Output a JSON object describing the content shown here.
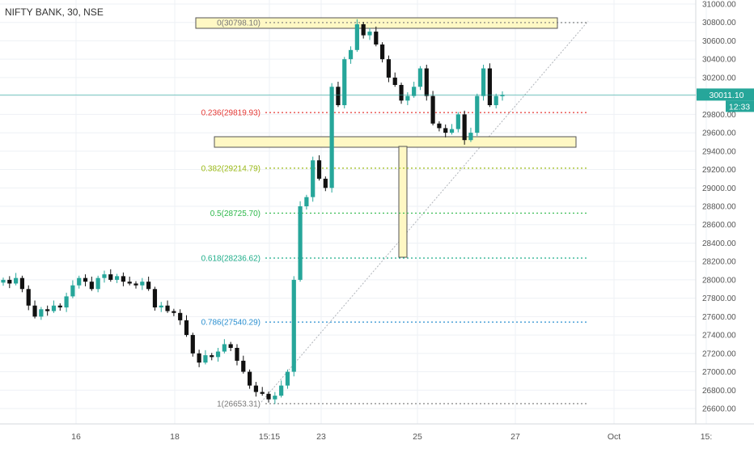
{
  "header": {
    "symbol_label": "NIFTY BANK, 30, NSE"
  },
  "colors": {
    "up": "#26a69a",
    "down": "#111111",
    "grid": "#eef1f5",
    "axis_text": "#555555",
    "price_line": "#26a69a",
    "box_fill": "#fff8c4",
    "box_stroke": "#555555"
  },
  "chart_data": {
    "type": "candlestick",
    "title": "",
    "y_ticks": [
      26600,
      26800,
      27000,
      27200,
      27400,
      27600,
      27800,
      28000,
      28200,
      28400,
      28600,
      28800,
      29000,
      29200,
      29400,
      29600,
      29800,
      30000,
      30200,
      30400,
      30600,
      30800,
      31000
    ],
    "x_tick_labels": [
      "16",
      "18",
      "15:15",
      "23",
      "25",
      "27",
      "Oct",
      "15:"
    ],
    "last_price": "30011.10",
    "countdown": "12:33",
    "fib_levels": [
      {
        "ratio": "0",
        "label": "0(30798.10)",
        "price": 30798.1,
        "color": "#777777"
      },
      {
        "ratio": "0.236",
        "label": "0.236(29819.93)",
        "price": 29819.93,
        "color": "#e53935"
      },
      {
        "ratio": "0.382",
        "label": "0.382(29214.79)",
        "price": 29214.79,
        "color": "#9ab916"
      },
      {
        "ratio": "0.5",
        "label": "0.5(28725.70)",
        "price": 28725.7,
        "color": "#2db84a"
      },
      {
        "ratio": "0.618",
        "label": "0.618(28236.62)",
        "price": 28236.62,
        "color": "#1fae8a"
      },
      {
        "ratio": "0.786",
        "label": "0.786(27540.29)",
        "price": 27540.29,
        "color": "#2a8fd0"
      },
      {
        "ratio": "1",
        "label": "1(26653.31)",
        "price": 26653.31,
        "color": "#777777"
      }
    ],
    "close_path": [
      28000,
      27960,
      28020,
      27900,
      27720,
      27600,
      27680,
      27660,
      27720,
      27700,
      27820,
      27940,
      28020,
      27980,
      27900,
      28020,
      28060,
      28000,
      28040,
      27980,
      27960,
      27940,
      27980,
      27900,
      27700,
      27720,
      27660,
      27640,
      27560,
      27400,
      27200,
      27100,
      27180,
      27160,
      27220,
      27300,
      27260,
      27120,
      27000,
      26850,
      26780,
      26760,
      26700,
      26740,
      26850,
      27000,
      28000,
      28800,
      28900,
      29300,
      29100,
      29000,
      30100,
      29900,
      30400,
      30500,
      30780,
      30660,
      30700,
      30560,
      30400,
      30200,
      30120,
      29950,
      30000,
      30100,
      30300,
      30000,
      29700,
      29650,
      29600,
      29640,
      29800,
      29520,
      29600,
      30000,
      30300,
      29900,
      30000,
      30011
    ]
  }
}
